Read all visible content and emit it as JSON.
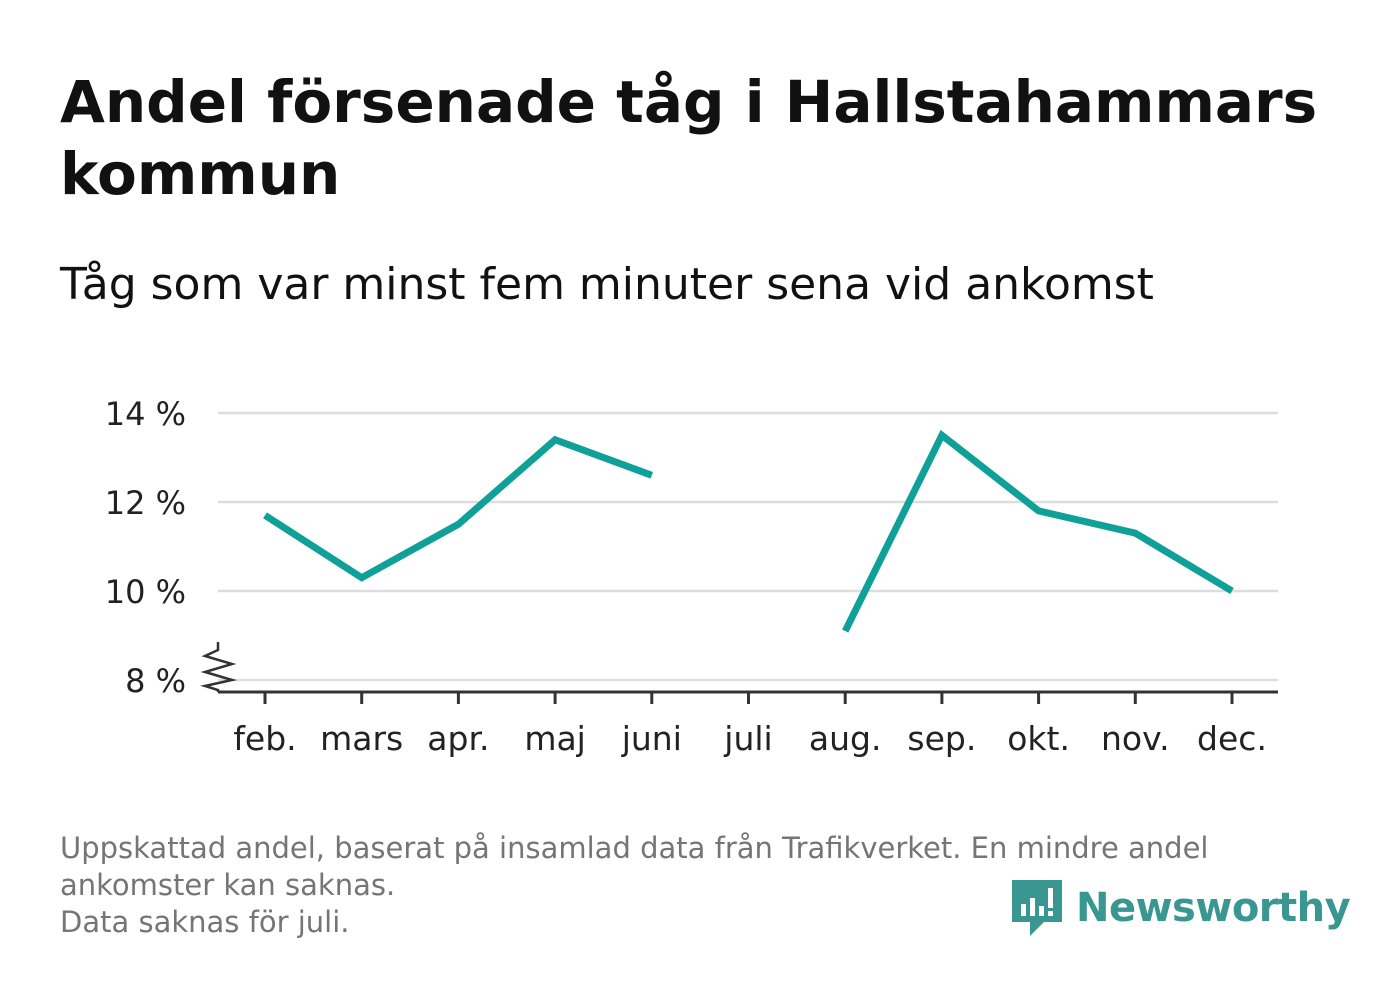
{
  "title": "Andel försenade tåg i Hallstahammars kommun",
  "subtitle": "Tåg som var minst fem minuter sena vid ankomst",
  "footnote": {
    "line1": "Uppskattad andel, baserat på insamlad data från Trafikverket. En mindre andel",
    "line2": "ankomster kan saknas.",
    "line3": "Data saknas för juli."
  },
  "brand": {
    "name": "Newsworthy",
    "color": "#3a9690",
    "icon": "bar-chart-speech-bubble-icon"
  },
  "chart_data": {
    "type": "line",
    "title": "Andel försenade tåg i Hallstahammars kommun",
    "subtitle": "Tåg som var minst fem minuter sena vid ankomst",
    "categories": [
      "feb.",
      "mars",
      "apr.",
      "maj",
      "juni",
      "juli",
      "aug.",
      "sep.",
      "okt.",
      "nov.",
      "dec."
    ],
    "series": [
      {
        "values": [
          11.7,
          10.3,
          11.5,
          13.4,
          12.6,
          null,
          9.1,
          13.5,
          11.8,
          11.3,
          10.0
        ]
      }
    ],
    "ylim": [
      8,
      14
    ],
    "yticks": [
      8,
      10,
      12,
      14
    ],
    "ytick_labels": [
      "8 %",
      "10 %",
      "12 %",
      "14 %"
    ],
    "y_axis_break": true,
    "grid": true,
    "line_color": "#0fa199",
    "xlabel": "",
    "ylabel": ""
  }
}
